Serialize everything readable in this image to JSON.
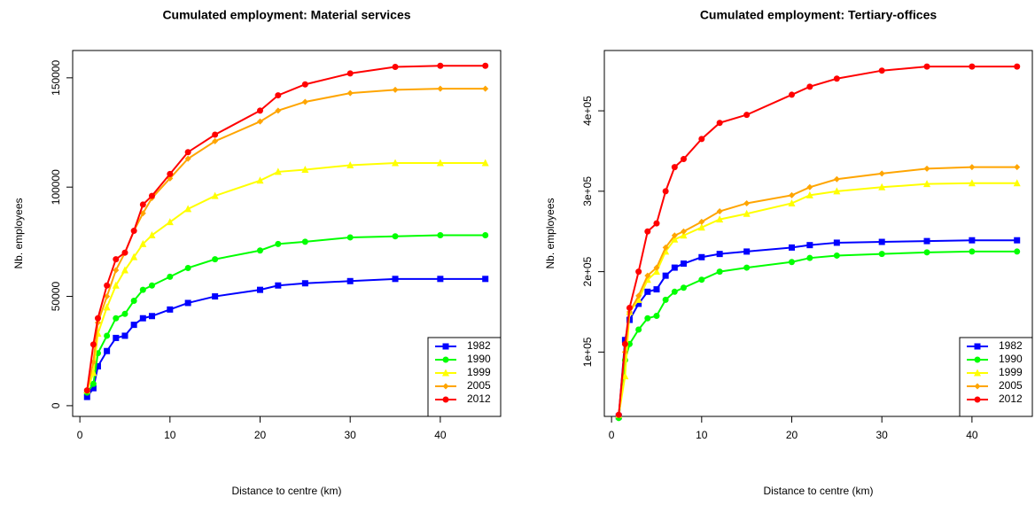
{
  "chart_data": [
    {
      "type": "line",
      "title": "Cumulated employment: Material services",
      "xlabel": "Distance to centre (km)",
      "ylabel": "Nb. employees",
      "x": [
        0.8,
        1.5,
        2,
        3,
        4,
        5,
        6,
        7,
        8,
        10,
        12,
        15,
        20,
        22,
        25,
        30,
        35,
        40,
        45
      ],
      "xlim": [
        -0.8,
        46.7
      ],
      "xticks": [
        0,
        10,
        20,
        30,
        40
      ],
      "ylim": [
        -4900,
        162500
      ],
      "yticks": [
        0,
        50000,
        100000,
        150000
      ],
      "legend": "bottom-right",
      "series": [
        {
          "name": "1982",
          "color": "#0000ff",
          "marker": "square",
          "values": [
            4000,
            8000,
            18000,
            25000,
            31000,
            32000,
            37000,
            40000,
            41000,
            44000,
            47000,
            50000,
            53000,
            55000,
            56000,
            57000,
            58000,
            58000,
            58000
          ]
        },
        {
          "name": "1990",
          "color": "#00ff00",
          "marker": "circle",
          "values": [
            6000,
            10000,
            24000,
            32000,
            40000,
            42000,
            48000,
            53000,
            55000,
            59000,
            63000,
            67000,
            71000,
            74000,
            75000,
            77000,
            77500,
            78000,
            78000
          ]
        },
        {
          "name": "1999",
          "color": "#ffff00",
          "marker": "triangle",
          "values": [
            7000,
            15000,
            33000,
            45000,
            55000,
            62000,
            68000,
            74000,
            78000,
            84000,
            90000,
            96000,
            103000,
            107000,
            108000,
            110000,
            111000,
            111000,
            111000
          ]
        },
        {
          "name": "2005",
          "color": "#ffa500",
          "marker": "diamond",
          "values": [
            7000,
            20000,
            38000,
            50000,
            62000,
            70000,
            80000,
            88000,
            95000,
            104000,
            113000,
            121000,
            130000,
            135000,
            139000,
            143000,
            144500,
            145000,
            145000
          ]
        },
        {
          "name": "2012",
          "color": "#ff0000",
          "marker": "circle",
          "values": [
            7000,
            28000,
            40000,
            55000,
            67000,
            70000,
            80000,
            92000,
            96000,
            106000,
            116000,
            124000,
            135000,
            142000,
            147000,
            152000,
            155000,
            155500,
            155500
          ]
        }
      ]
    },
    {
      "type": "line",
      "title": "Cumulated employment: Tertiary-offices",
      "xlabel": "Distance to centre (km)",
      "ylabel": "Nb. employees",
      "x": [
        0.8,
        1.5,
        2,
        3,
        4,
        5,
        6,
        7,
        8,
        10,
        12,
        15,
        20,
        22,
        25,
        30,
        35,
        40,
        45
      ],
      "xlim": [
        -0.8,
        46.7
      ],
      "xticks": [
        0,
        10,
        20,
        30,
        40
      ],
      "ylim": [
        20000,
        475000
      ],
      "yticks": [
        {
          "value": 100000,
          "label": "1e+05"
        },
        {
          "value": 200000,
          "label": "2e+05"
        },
        {
          "value": 300000,
          "label": "3e+05"
        },
        {
          "value": 400000,
          "label": "4e+05"
        }
      ],
      "legend": "bottom-right",
      "series": [
        {
          "name": "1982",
          "color": "#0000ff",
          "marker": "square",
          "values": [
            20000,
            115000,
            140000,
            160000,
            175000,
            178000,
            195000,
            205000,
            210000,
            218000,
            222000,
            225000,
            230000,
            233000,
            236000,
            237000,
            238000,
            239000,
            239000
          ]
        },
        {
          "name": "1990",
          "color": "#00ff00",
          "marker": "circle",
          "values": [
            18000,
            90000,
            110000,
            128000,
            142000,
            145000,
            165000,
            175000,
            180000,
            190000,
            200000,
            205000,
            212000,
            217000,
            220000,
            222000,
            224000,
            225000,
            225000
          ]
        },
        {
          "name": "1999",
          "color": "#ffff00",
          "marker": "triangle",
          "values": [
            22000,
            70000,
            150000,
            165000,
            190000,
            200000,
            225000,
            240000,
            245000,
            255000,
            265000,
            272000,
            285000,
            295000,
            300000,
            305000,
            309000,
            310000,
            310000
          ]
        },
        {
          "name": "2005",
          "color": "#ffa500",
          "marker": "diamond",
          "values": [
            22000,
            100000,
            150000,
            170000,
            195000,
            205000,
            230000,
            245000,
            250000,
            262000,
            275000,
            285000,
            295000,
            305000,
            315000,
            322000,
            328000,
            330000,
            330000
          ]
        },
        {
          "name": "2012",
          "color": "#ff0000",
          "marker": "circle",
          "values": [
            22000,
            110000,
            155000,
            200000,
            250000,
            260000,
            300000,
            330000,
            340000,
            365000,
            385000,
            395000,
            420000,
            430000,
            440000,
            450000,
            455000,
            455000,
            455000
          ]
        }
      ]
    }
  ]
}
